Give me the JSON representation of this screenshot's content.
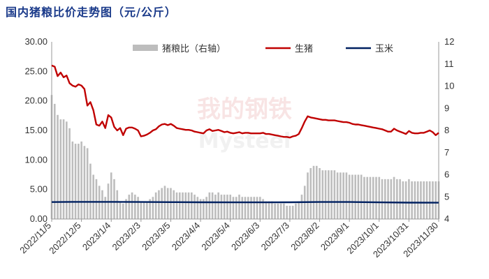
{
  "title": "国内猪粮比价走势图（元/公斤）",
  "watermark": {
    "cn": "我的钢铁",
    "en": "Mysteel"
  },
  "colors": {
    "ratio": "#bdbdbd",
    "hog": "#c00000",
    "corn": "#002060",
    "axis": "#999999"
  },
  "chart_data": {
    "type": "bar+line",
    "left_axis": {
      "min": 0,
      "max": 30,
      "ticks": [
        "0.00",
        "5.00",
        "10.00",
        "15.00",
        "20.00",
        "25.00",
        "30.00"
      ]
    },
    "right_axis": {
      "min": 4,
      "max": 12,
      "ticks": [
        "4",
        "5",
        "6",
        "7",
        "8",
        "9",
        "10",
        "11",
        "12"
      ]
    },
    "x_ticks": [
      "2022/11/5",
      "2022/12/5",
      "2023/1/4",
      "2023/2/3",
      "2023/3/5",
      "2023/4/4",
      "2023/5/4",
      "2023/6/3",
      "2023/7/3",
      "2023/8/2",
      "2023/9/1",
      "2023/10/1",
      "2023/10/31",
      "2023/11/30"
    ],
    "legend": [
      "猪粮比（右轴）",
      "生猪",
      "玉米"
    ],
    "legend_position": "top",
    "series": [
      {
        "name": "猪粮比（右轴）",
        "type": "bar",
        "axis": "right",
        "points": [
          [
            "2022/11/5",
            9.6
          ],
          [
            "2022/11/8",
            9.2
          ],
          [
            "2022/11/11",
            8.7
          ],
          [
            "2022/11/14",
            8.5
          ],
          [
            "2022/11/17",
            8.5
          ],
          [
            "2022/11/20",
            8.4
          ],
          [
            "2022/11/23",
            8.1
          ],
          [
            "2022/11/26",
            7.5
          ],
          [
            "2022/11/29",
            7.4
          ],
          [
            "2022/12/2",
            7.4
          ],
          [
            "2022/12/5",
            7.5
          ],
          [
            "2022/12/8",
            7.3
          ],
          [
            "2022/12/11",
            7.2
          ],
          [
            "2022/12/14",
            6.5
          ],
          [
            "2022/12/17",
            6.0
          ],
          [
            "2022/12/20",
            5.8
          ],
          [
            "2022/12/23",
            5.5
          ],
          [
            "2022/12/26",
            5.3
          ],
          [
            "2022/12/29",
            5.0
          ],
          [
            "2023/1/1",
            5.6
          ],
          [
            "2023/1/4",
            6.1
          ],
          [
            "2023/1/7",
            5.8
          ],
          [
            "2023/1/10",
            5.3
          ],
          [
            "2023/1/13",
            4.8
          ],
          [
            "2023/1/16",
            4.7
          ],
          [
            "2023/1/19",
            4.9
          ],
          [
            "2023/1/22",
            5.1
          ],
          [
            "2023/1/25",
            5.2
          ],
          [
            "2023/1/28",
            5.1
          ],
          [
            "2023/1/31",
            5.0
          ],
          [
            "2023/2/3",
            4.8
          ],
          [
            "2023/2/6",
            4.8
          ],
          [
            "2023/2/9",
            4.8
          ],
          [
            "2023/2/12",
            4.9
          ],
          [
            "2023/2/15",
            5.0
          ],
          [
            "2023/2/18",
            5.2
          ],
          [
            "2023/2/21",
            5.3
          ],
          [
            "2023/2/24",
            5.4
          ],
          [
            "2023/2/27",
            5.5
          ],
          [
            "2023/3/2",
            5.4
          ],
          [
            "2023/3/5",
            5.4
          ],
          [
            "2023/3/8",
            5.3
          ],
          [
            "2023/3/11",
            5.2
          ],
          [
            "2023/3/14",
            5.2
          ],
          [
            "2023/3/17",
            5.2
          ],
          [
            "2023/3/20",
            5.2
          ],
          [
            "2023/3/23",
            5.2
          ],
          [
            "2023/3/26",
            5.2
          ],
          [
            "2023/3/29",
            5.1
          ],
          [
            "2023/4/1",
            5.0
          ],
          [
            "2023/4/4",
            4.9
          ],
          [
            "2023/4/7",
            4.9
          ],
          [
            "2023/4/10",
            5.0
          ],
          [
            "2023/4/13",
            5.2
          ],
          [
            "2023/4/16",
            5.2
          ],
          [
            "2023/4/19",
            5.1
          ],
          [
            "2023/4/22",
            5.2
          ],
          [
            "2023/4/25",
            5.1
          ],
          [
            "2023/4/28",
            5.1
          ],
          [
            "2023/5/1",
            5.1
          ],
          [
            "2023/5/4",
            5.1
          ],
          [
            "2023/5/7",
            5.0
          ],
          [
            "2023/5/10",
            5.0
          ],
          [
            "2023/5/13",
            5.1
          ],
          [
            "2023/5/16",
            5.0
          ],
          [
            "2023/5/19",
            5.0
          ],
          [
            "2023/5/22",
            5.0
          ],
          [
            "2023/5/25",
            5.0
          ],
          [
            "2023/5/28",
            5.0
          ],
          [
            "2023/5/31",
            5.0
          ],
          [
            "2023/6/3",
            5.0
          ],
          [
            "2023/6/6",
            4.9
          ],
          [
            "2023/6/9",
            4.8
          ],
          [
            "2023/6/12",
            4.8
          ],
          [
            "2023/6/15",
            4.8
          ],
          [
            "2023/6/18",
            4.7
          ],
          [
            "2023/6/21",
            4.7
          ],
          [
            "2023/6/24",
            4.7
          ],
          [
            "2023/6/27",
            4.7
          ],
          [
            "2023/6/30",
            4.6
          ],
          [
            "2023/7/3",
            4.6
          ],
          [
            "2023/7/6",
            4.6
          ],
          [
            "2023/7/9",
            4.7
          ],
          [
            "2023/7/12",
            4.8
          ],
          [
            "2023/7/15",
            5.1
          ],
          [
            "2023/7/18",
            5.5
          ],
          [
            "2023/7/21",
            6.1
          ],
          [
            "2023/7/24",
            6.3
          ],
          [
            "2023/7/27",
            6.4
          ],
          [
            "2023/7/30",
            6.4
          ],
          [
            "2023/8/2",
            6.3
          ],
          [
            "2023/8/5",
            6.2
          ],
          [
            "2023/8/8",
            6.2
          ],
          [
            "2023/8/11",
            6.2
          ],
          [
            "2023/8/14",
            6.2
          ],
          [
            "2023/8/17",
            6.2
          ],
          [
            "2023/8/20",
            6.1
          ],
          [
            "2023/8/23",
            6.1
          ],
          [
            "2023/8/26",
            6.1
          ],
          [
            "2023/8/29",
            6.1
          ],
          [
            "2023/9/1",
            6.0
          ],
          [
            "2023/9/4",
            6.0
          ],
          [
            "2023/9/7",
            6.0
          ],
          [
            "2023/9/10",
            6.0
          ],
          [
            "2023/9/13",
            6.0
          ],
          [
            "2023/9/16",
            5.9
          ],
          [
            "2023/9/19",
            5.9
          ],
          [
            "2023/9/22",
            5.9
          ],
          [
            "2023/9/25",
            5.9
          ],
          [
            "2023/9/28",
            5.9
          ],
          [
            "2023/10/1",
            5.9
          ],
          [
            "2023/10/4",
            5.8
          ],
          [
            "2023/10/7",
            5.8
          ],
          [
            "2023/10/10",
            5.8
          ],
          [
            "2023/10/13",
            5.8
          ],
          [
            "2023/10/16",
            5.9
          ],
          [
            "2023/10/19",
            5.8
          ],
          [
            "2023/10/22",
            5.8
          ],
          [
            "2023/10/25",
            5.7
          ],
          [
            "2023/10/28",
            5.7
          ],
          [
            "2023/10/31",
            5.8
          ],
          [
            "2023/11/3",
            5.7
          ],
          [
            "2023/11/6",
            5.7
          ],
          [
            "2023/11/9",
            5.7
          ],
          [
            "2023/11/12",
            5.7
          ],
          [
            "2023/11/15",
            5.7
          ],
          [
            "2023/11/18",
            5.7
          ],
          [
            "2023/11/21",
            5.7
          ],
          [
            "2023/11/24",
            5.7
          ],
          [
            "2023/11/27",
            5.7
          ],
          [
            "2023/11/30",
            5.7
          ]
        ]
      },
      {
        "name": "生猪",
        "type": "line",
        "axis": "left",
        "points": [
          [
            "2022/11/5",
            26.0
          ],
          [
            "2022/11/8",
            25.8
          ],
          [
            "2022/11/11",
            24.2
          ],
          [
            "2022/11/14",
            24.8
          ],
          [
            "2022/11/17",
            24.0
          ],
          [
            "2022/11/20",
            24.3
          ],
          [
            "2022/11/23",
            23.0
          ],
          [
            "2022/11/26",
            22.6
          ],
          [
            "2022/11/29",
            22.4
          ],
          [
            "2022/12/2",
            22.8
          ],
          [
            "2022/12/5",
            22.6
          ],
          [
            "2022/12/8",
            22.0
          ],
          [
            "2022/12/11",
            19.2
          ],
          [
            "2022/12/14",
            19.8
          ],
          [
            "2022/12/17",
            18.4
          ],
          [
            "2022/12/20",
            16.0
          ],
          [
            "2022/12/23",
            15.8
          ],
          [
            "2022/12/26",
            16.5
          ],
          [
            "2022/12/29",
            15.4
          ],
          [
            "2023/1/1",
            17.6
          ],
          [
            "2023/1/4",
            17.2
          ],
          [
            "2023/1/7",
            15.6
          ],
          [
            "2023/1/10",
            15.0
          ],
          [
            "2023/1/13",
            15.4
          ],
          [
            "2023/1/16",
            14.2
          ],
          [
            "2023/1/19",
            15.3
          ],
          [
            "2023/1/22",
            15.5
          ],
          [
            "2023/1/25",
            15.5
          ],
          [
            "2023/1/28",
            15.3
          ],
          [
            "2023/1/31",
            15.0
          ],
          [
            "2023/2/3",
            14.0
          ],
          [
            "2023/2/6",
            14.1
          ],
          [
            "2023/2/9",
            14.3
          ],
          [
            "2023/2/12",
            14.6
          ],
          [
            "2023/2/15",
            15.0
          ],
          [
            "2023/2/18",
            15.2
          ],
          [
            "2023/2/21",
            15.7
          ],
          [
            "2023/2/24",
            16.0
          ],
          [
            "2023/2/27",
            16.1
          ],
          [
            "2023/3/2",
            15.9
          ],
          [
            "2023/3/5",
            16.1
          ],
          [
            "2023/3/8",
            15.8
          ],
          [
            "2023/3/11",
            15.4
          ],
          [
            "2023/3/14",
            15.3
          ],
          [
            "2023/3/17",
            15.2
          ],
          [
            "2023/3/20",
            15.1
          ],
          [
            "2023/3/23",
            15.1
          ],
          [
            "2023/3/26",
            15.0
          ],
          [
            "2023/3/29",
            14.8
          ],
          [
            "2023/4/1",
            14.7
          ],
          [
            "2023/4/4",
            14.6
          ],
          [
            "2023/4/7",
            14.5
          ],
          [
            "2023/4/10",
            15.0
          ],
          [
            "2023/4/13",
            15.2
          ],
          [
            "2023/4/16",
            14.9
          ],
          [
            "2023/4/19",
            15.0
          ],
          [
            "2023/4/22",
            15.1
          ],
          [
            "2023/4/25",
            14.9
          ],
          [
            "2023/4/28",
            14.7
          ],
          [
            "2023/5/1",
            14.8
          ],
          [
            "2023/5/4",
            14.6
          ],
          [
            "2023/5/7",
            14.5
          ],
          [
            "2023/5/10",
            14.6
          ],
          [
            "2023/5/13",
            14.7
          ],
          [
            "2023/5/16",
            14.5
          ],
          [
            "2023/5/19",
            14.6
          ],
          [
            "2023/5/22",
            14.6
          ],
          [
            "2023/5/25",
            14.5
          ],
          [
            "2023/5/28",
            14.5
          ],
          [
            "2023/5/31",
            14.5
          ],
          [
            "2023/6/3",
            14.5
          ],
          [
            "2023/6/6",
            14.6
          ],
          [
            "2023/6/9",
            14.4
          ],
          [
            "2023/6/12",
            14.4
          ],
          [
            "2023/6/15",
            14.3
          ],
          [
            "2023/6/18",
            14.2
          ],
          [
            "2023/6/21",
            14.1
          ],
          [
            "2023/6/24",
            14.0
          ],
          [
            "2023/6/27",
            13.9
          ],
          [
            "2023/6/30",
            13.9
          ],
          [
            "2023/7/3",
            13.8
          ],
          [
            "2023/7/6",
            14.0
          ],
          [
            "2023/7/9",
            14.1
          ],
          [
            "2023/7/12",
            14.4
          ],
          [
            "2023/7/15",
            15.4
          ],
          [
            "2023/7/18",
            16.5
          ],
          [
            "2023/7/21",
            17.4
          ],
          [
            "2023/7/24",
            17.2
          ],
          [
            "2023/7/27",
            17.1
          ],
          [
            "2023/7/30",
            17.0
          ],
          [
            "2023/8/2",
            16.9
          ],
          [
            "2023/8/5",
            16.8
          ],
          [
            "2023/8/8",
            16.8
          ],
          [
            "2023/8/11",
            16.7
          ],
          [
            "2023/8/14",
            16.7
          ],
          [
            "2023/8/17",
            16.7
          ],
          [
            "2023/8/20",
            16.6
          ],
          [
            "2023/8/23",
            16.5
          ],
          [
            "2023/8/26",
            16.4
          ],
          [
            "2023/8/29",
            16.4
          ],
          [
            "2023/9/1",
            16.3
          ],
          [
            "2023/9/4",
            16.1
          ],
          [
            "2023/9/7",
            16.0
          ],
          [
            "2023/9/10",
            16.0
          ],
          [
            "2023/9/13",
            15.9
          ],
          [
            "2023/9/16",
            15.8
          ],
          [
            "2023/9/19",
            15.7
          ],
          [
            "2023/9/22",
            15.6
          ],
          [
            "2023/9/25",
            15.5
          ],
          [
            "2023/9/28",
            15.4
          ],
          [
            "2023/10/1",
            15.3
          ],
          [
            "2023/10/4",
            15.2
          ],
          [
            "2023/10/7",
            15.0
          ],
          [
            "2023/10/10",
            14.8
          ],
          [
            "2023/10/13",
            14.8
          ],
          [
            "2023/10/16",
            15.3
          ],
          [
            "2023/10/19",
            15.0
          ],
          [
            "2023/10/22",
            14.8
          ],
          [
            "2023/10/25",
            14.6
          ],
          [
            "2023/10/28",
            14.4
          ],
          [
            "2023/10/31",
            14.9
          ],
          [
            "2023/11/3",
            14.6
          ],
          [
            "2023/11/6",
            14.5
          ],
          [
            "2023/11/9",
            14.5
          ],
          [
            "2023/11/12",
            14.6
          ],
          [
            "2023/11/15",
            14.6
          ],
          [
            "2023/11/18",
            14.8
          ],
          [
            "2023/11/21",
            15.0
          ],
          [
            "2023/11/24",
            14.7
          ],
          [
            "2023/11/27",
            14.2
          ],
          [
            "2023/11/30",
            14.6
          ]
        ]
      },
      {
        "name": "玉米",
        "type": "line",
        "axis": "left",
        "points": [
          [
            "2022/11/5",
            2.87
          ],
          [
            "2022/11/26",
            2.9
          ],
          [
            "2023/1/4",
            2.9
          ],
          [
            "2023/2/3",
            2.88
          ],
          [
            "2023/3/5",
            2.86
          ],
          [
            "2023/4/4",
            2.84
          ],
          [
            "2023/5/4",
            2.82
          ],
          [
            "2023/6/3",
            2.82
          ],
          [
            "2023/7/3",
            2.84
          ],
          [
            "2023/8/2",
            2.88
          ],
          [
            "2023/9/1",
            2.88
          ],
          [
            "2023/10/1",
            2.82
          ],
          [
            "2023/10/31",
            2.78
          ],
          [
            "2023/11/30",
            2.76
          ]
        ]
      }
    ]
  }
}
